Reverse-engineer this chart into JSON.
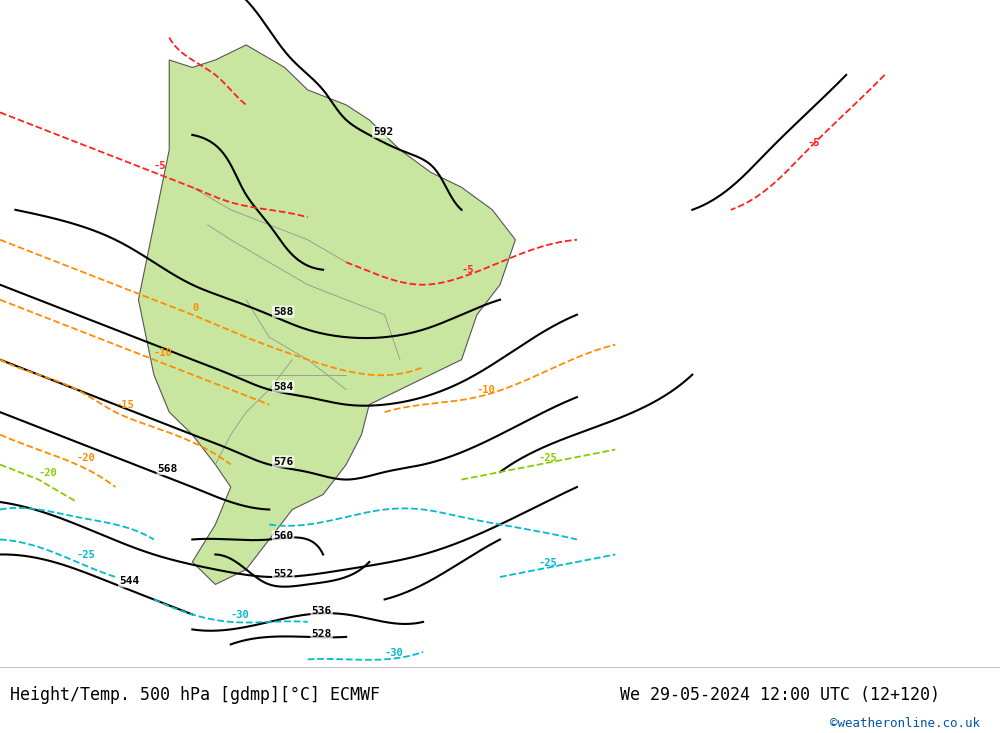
{
  "title_left": "Height/Temp. 500 hPa [gdmp][°C] ECMWF",
  "title_right": "We 29-05-2024 12:00 UTC (12+120)",
  "watermark": "©weatheronline.co.uk",
  "bg_color": "#d8d8d8",
  "land_color": "#c8e6a0",
  "ocean_color": "#dcdcdc",
  "bottom_bar_color": "#e8e8e8",
  "contour_color_z500": "#000000",
  "contour_color_temp_neg": "#ff0000",
  "contour_color_temp_zero": "#ff8c00",
  "contour_color_temp_pos_warm": "#ff8c00",
  "contour_color_slp_cyan": "#00cccc",
  "figsize": [
    10.0,
    7.33
  ],
  "dpi": 100
}
